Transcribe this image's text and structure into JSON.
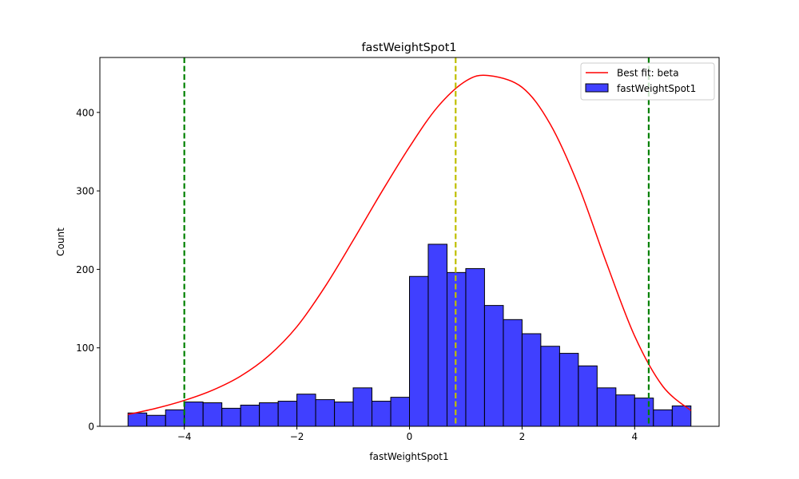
{
  "chart_data": {
    "type": "bar",
    "title": "fastWeightSpot1",
    "xlabel": "fastWeightSpot1",
    "ylabel": "Count",
    "xlim": [
      -5.5,
      5.5
    ],
    "ylim": [
      0,
      470
    ],
    "xticks": [
      -4,
      -2,
      0,
      2,
      4
    ],
    "xtick_labels": [
      "−4",
      "−2",
      "0",
      "2",
      "4"
    ],
    "yticks": [
      0,
      100,
      200,
      300,
      400
    ],
    "ytick_labels": [
      "0",
      "100",
      "200",
      "300",
      "400"
    ],
    "grid": false,
    "legend_position": "top-right",
    "bin_edges": [
      -5.0,
      -4.667,
      -4.333,
      -4.0,
      -3.667,
      -3.333,
      -3.0,
      -2.667,
      -2.333,
      -2.0,
      -1.667,
      -1.333,
      -1.0,
      -0.667,
      -0.333,
      0.0,
      0.333,
      0.667,
      1.0,
      1.333,
      1.667,
      2.0,
      2.333,
      2.667,
      3.0,
      3.333,
      3.667,
      4.0,
      4.333,
      4.667,
      5.0
    ],
    "series": [
      {
        "name": "fastWeightSpot1",
        "kind": "histogram",
        "color": "#0000ff",
        "values": [
          17,
          14,
          21,
          31,
          30,
          23,
          27,
          30,
          32,
          41,
          34,
          31,
          49,
          32,
          37,
          191,
          232,
          196,
          201,
          154,
          136,
          118,
          102,
          93,
          77,
          49,
          40,
          36,
          21,
          26
        ]
      },
      {
        "name": "Best fit: beta",
        "kind": "line",
        "color": "#ff0000",
        "x": [
          -5.0,
          -4.5,
          -4.0,
          -3.5,
          -3.0,
          -2.5,
          -2.0,
          -1.5,
          -1.0,
          -0.5,
          0.0,
          0.5,
          1.0,
          1.4,
          2.0,
          2.5,
          3.0,
          3.5,
          4.0,
          4.5,
          5.0
        ],
        "y": [
          15,
          23,
          33,
          46,
          64,
          90,
          127,
          178,
          237,
          298,
          356,
          407,
          440,
          447,
          432,
          385,
          307,
          208,
          115,
          51,
          20
        ]
      }
    ],
    "vertical_lines": [
      {
        "x": -4.0,
        "color": "#008000",
        "style": "dashed"
      },
      {
        "x": 0.82,
        "color": "#bfbf00",
        "style": "dashed"
      },
      {
        "x": 4.25,
        "color": "#008000",
        "style": "dashed"
      }
    ]
  }
}
